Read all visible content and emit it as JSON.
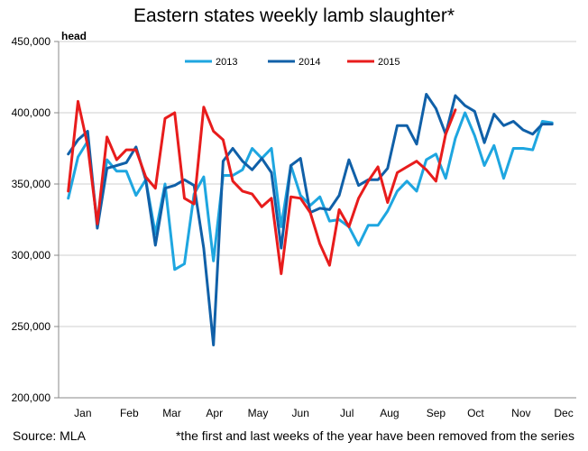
{
  "chart_data": {
    "type": "line",
    "title": "Eastern states weekly lamb slaughter*",
    "ylabel": "head",
    "ylim": [
      200000,
      450000
    ],
    "yticks": [
      200000,
      250000,
      300000,
      350000,
      400000,
      450000
    ],
    "ytick_labels": [
      "200,000",
      "250,000",
      "300,000",
      "350,000",
      "400,000",
      "450,000"
    ],
    "xlim": [
      1,
      52
    ],
    "months": [
      {
        "label": "Jan",
        "x": 3.5
      },
      {
        "label": "Feb",
        "x": 8.3
      },
      {
        "label": "Mar",
        "x": 12.7
      },
      {
        "label": "Apr",
        "x": 17.1
      },
      {
        "label": "May",
        "x": 21.6
      },
      {
        "label": "Jun",
        "x": 26.0
      },
      {
        "label": "Jul",
        "x": 30.8
      },
      {
        "label": "Aug",
        "x": 35.2
      },
      {
        "label": "Sep",
        "x": 40.0
      },
      {
        "label": "Oct",
        "x": 44.1
      },
      {
        "label": "Nov",
        "x": 48.8
      },
      {
        "label": "Dec",
        "x": 53.2
      }
    ],
    "grid": "horizontal",
    "legend_position": "top-center",
    "series": [
      {
        "name": "2013",
        "color": "#1ea6e0",
        "x": [
          2,
          3,
          4,
          5,
          6,
          7,
          8,
          9,
          10,
          11,
          12,
          13,
          14,
          15,
          16,
          17,
          18,
          19,
          20,
          21,
          22,
          23,
          24,
          25,
          26,
          27,
          28,
          29,
          30,
          31,
          32,
          33,
          34,
          35,
          36,
          37,
          38,
          39,
          40,
          41,
          42,
          43,
          44,
          45,
          46,
          47,
          48,
          49,
          50,
          51,
          52
        ],
        "values": [
          340000,
          369000,
          380000,
          323000,
          367000,
          359000,
          359000,
          342000,
          353000,
          315000,
          350000,
          290000,
          294000,
          343000,
          355000,
          296000,
          356000,
          356000,
          360000,
          375000,
          368000,
          375000,
          320000,
          363000,
          342000,
          335000,
          341000,
          324000,
          325000,
          320000,
          307000,
          321000,
          321000,
          331000,
          345000,
          352000,
          345000,
          367000,
          371000,
          354000,
          382000,
          400000,
          384000,
          363000,
          377000,
          354000,
          375000,
          375000,
          374000,
          394000,
          393000
        ]
      },
      {
        "name": "2014",
        "color": "#1060a8",
        "x": [
          2,
          3,
          4,
          5,
          6,
          7,
          8,
          9,
          10,
          11,
          12,
          13,
          14,
          15,
          16,
          17,
          18,
          19,
          20,
          21,
          22,
          23,
          24,
          25,
          26,
          27,
          28,
          29,
          30,
          31,
          32,
          33,
          34,
          35,
          36,
          37,
          38,
          39,
          40,
          41,
          42,
          43,
          44,
          45,
          46,
          47,
          48,
          49,
          50,
          51,
          52
        ],
        "values": [
          371000,
          381000,
          387000,
          319000,
          361000,
          363000,
          365000,
          376000,
          353000,
          307000,
          347000,
          349000,
          353000,
          349000,
          305000,
          237000,
          366000,
          375000,
          366000,
          360000,
          368000,
          358000,
          305000,
          363000,
          368000,
          330000,
          333000,
          332000,
          342000,
          367000,
          349000,
          353000,
          353000,
          361000,
          391000,
          391000,
          378000,
          413000,
          403000,
          385000,
          412000,
          405000,
          401000,
          379000,
          399000,
          391000,
          394000,
          388000,
          385000,
          392000,
          392000
        ]
      },
      {
        "name": "2015",
        "color": "#e81c1c",
        "x": [
          2,
          3,
          4,
          5,
          6,
          7,
          8,
          9,
          10,
          11,
          12,
          13,
          14,
          15,
          16,
          17,
          18,
          19,
          20,
          21,
          22,
          23,
          24,
          25,
          26,
          27,
          28,
          29,
          30,
          31,
          32,
          33,
          34,
          35,
          36,
          37,
          38,
          39,
          40,
          41,
          42,
          43
        ],
        "values": [
          345000,
          408000,
          377000,
          322000,
          383000,
          367000,
          374000,
          374000,
          355000,
          347000,
          396000,
          400000,
          340000,
          336000,
          404000,
          387000,
          381000,
          352000,
          345000,
          343000,
          334000,
          340000,
          287000,
          341000,
          340000,
          330000,
          308000,
          293000,
          332000,
          320000,
          340000,
          352000,
          362000,
          337000,
          358000,
          362000,
          366000,
          360000,
          352000,
          385000,
          402000,
          null
        ]
      }
    ]
  },
  "footer": {
    "source": "Source: MLA",
    "note": "*the first and last weeks of the year have been removed from the series"
  }
}
